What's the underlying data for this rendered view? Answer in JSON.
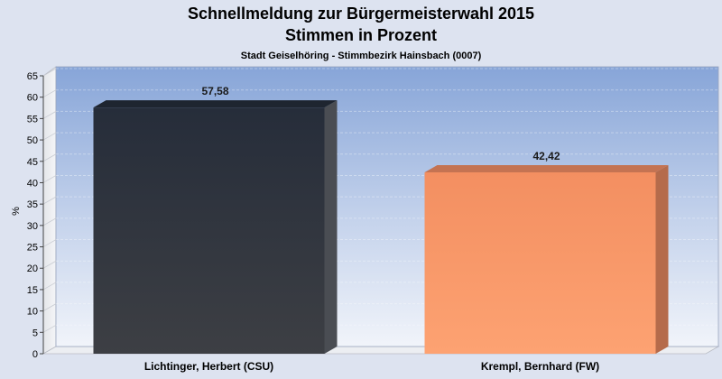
{
  "chart_data": {
    "type": "bar",
    "title": "Schnellmeldung zur Bürgermeisterwahl 2015",
    "title_line2": "Stimmen in Prozent",
    "subtitle": "Stadt Geiselhöring - Stimmbezirk Hainsbach (0007)",
    "ylabel": "%",
    "xlabel": "",
    "ylim": [
      0,
      65
    ],
    "yticks": [
      0,
      5,
      10,
      15,
      20,
      25,
      30,
      35,
      40,
      45,
      50,
      55,
      60,
      65
    ],
    "grid": true,
    "categories": [
      "Lichtinger, Herbert (CSU)",
      "Krempl, Bernhard (FW)"
    ],
    "values": [
      57.58,
      42.42
    ],
    "value_labels": [
      "57,58",
      "42,42"
    ],
    "bar_colors": [
      "#2f3a48",
      "#f79a6a"
    ]
  }
}
